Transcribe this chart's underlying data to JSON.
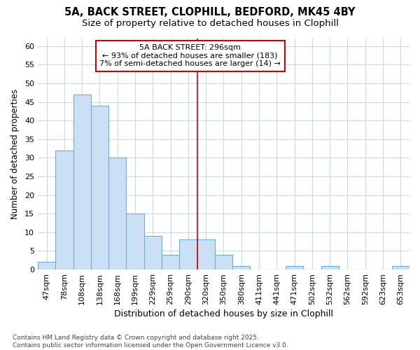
{
  "title1": "5A, BACK STREET, CLOPHILL, BEDFORD, MK45 4BY",
  "title2": "Size of property relative to detached houses in Clophill",
  "xlabel": "Distribution of detached houses by size in Clophill",
  "ylabel": "Number of detached properties",
  "categories": [
    "47sqm",
    "78sqm",
    "108sqm",
    "138sqm",
    "168sqm",
    "199sqm",
    "229sqm",
    "259sqm",
    "290sqm",
    "320sqm",
    "350sqm",
    "380sqm",
    "411sqm",
    "441sqm",
    "471sqm",
    "502sqm",
    "532sqm",
    "562sqm",
    "592sqm",
    "623sqm",
    "653sqm"
  ],
  "values": [
    2,
    32,
    47,
    44,
    30,
    15,
    9,
    4,
    8,
    8,
    4,
    1,
    0,
    0,
    1,
    0,
    1,
    0,
    0,
    0,
    1
  ],
  "bar_color": "#cce0f5",
  "bar_edge_color": "#6baed6",
  "bg_color": "#ffffff",
  "grid_color": "#c8d8e8",
  "annotation_box_text": "5A BACK STREET: 296sqm\n← 93% of detached houses are smaller (183)\n7% of semi-detached houses are larger (14) →",
  "vline_x": 8.5,
  "vline_color": "#cc0000",
  "ylim": [
    0,
    62
  ],
  "yticks": [
    0,
    5,
    10,
    15,
    20,
    25,
    30,
    35,
    40,
    45,
    50,
    55,
    60
  ],
  "footnote": "Contains HM Land Registry data © Crown copyright and database right 2025.\nContains public sector information licensed under the Open Government Licence v3.0.",
  "title_fontsize": 10.5,
  "subtitle_fontsize": 9.5,
  "xlabel_fontsize": 9,
  "ylabel_fontsize": 8.5,
  "tick_fontsize": 8,
  "annot_fontsize": 8,
  "footnote_fontsize": 6.5
}
